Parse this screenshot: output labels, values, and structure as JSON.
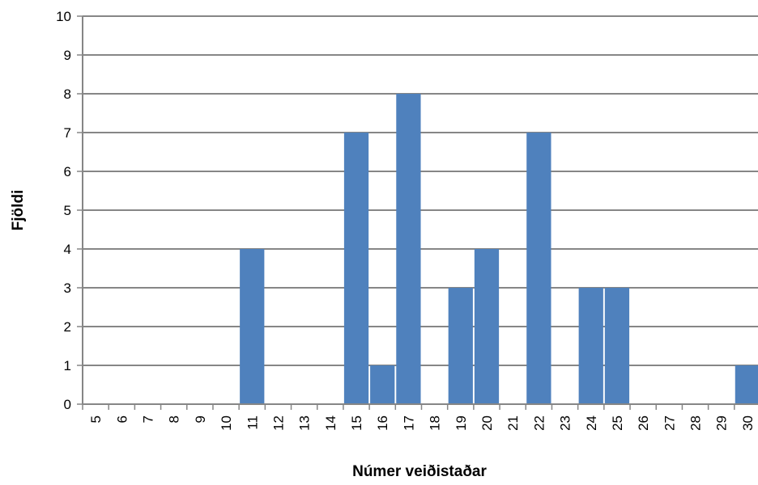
{
  "chart_data": {
    "type": "bar",
    "title": "",
    "xlabel": "Númer veiðistaðar",
    "ylabel": "Fjöldi",
    "categories": [
      "5",
      "6",
      "7",
      "8",
      "9",
      "10",
      "11",
      "12",
      "13",
      "14",
      "15",
      "16",
      "17",
      "18",
      "19",
      "20",
      "21",
      "22",
      "23",
      "24",
      "25",
      "26",
      "27",
      "28",
      "29",
      "30"
    ],
    "values": [
      0,
      0,
      0,
      0,
      0,
      0,
      4,
      0,
      0,
      0,
      7,
      1,
      8,
      0,
      3,
      4,
      0,
      7,
      0,
      3,
      3,
      0,
      0,
      0,
      0,
      1
    ],
    "ylim": [
      0,
      10
    ],
    "yticks": [
      0,
      1,
      2,
      3,
      4,
      5,
      6,
      7,
      8,
      9,
      10
    ],
    "grid": true,
    "legend": "none",
    "bar_color": "#4F81BD",
    "grid_color": "#868686",
    "axis_color": "#868686"
  }
}
